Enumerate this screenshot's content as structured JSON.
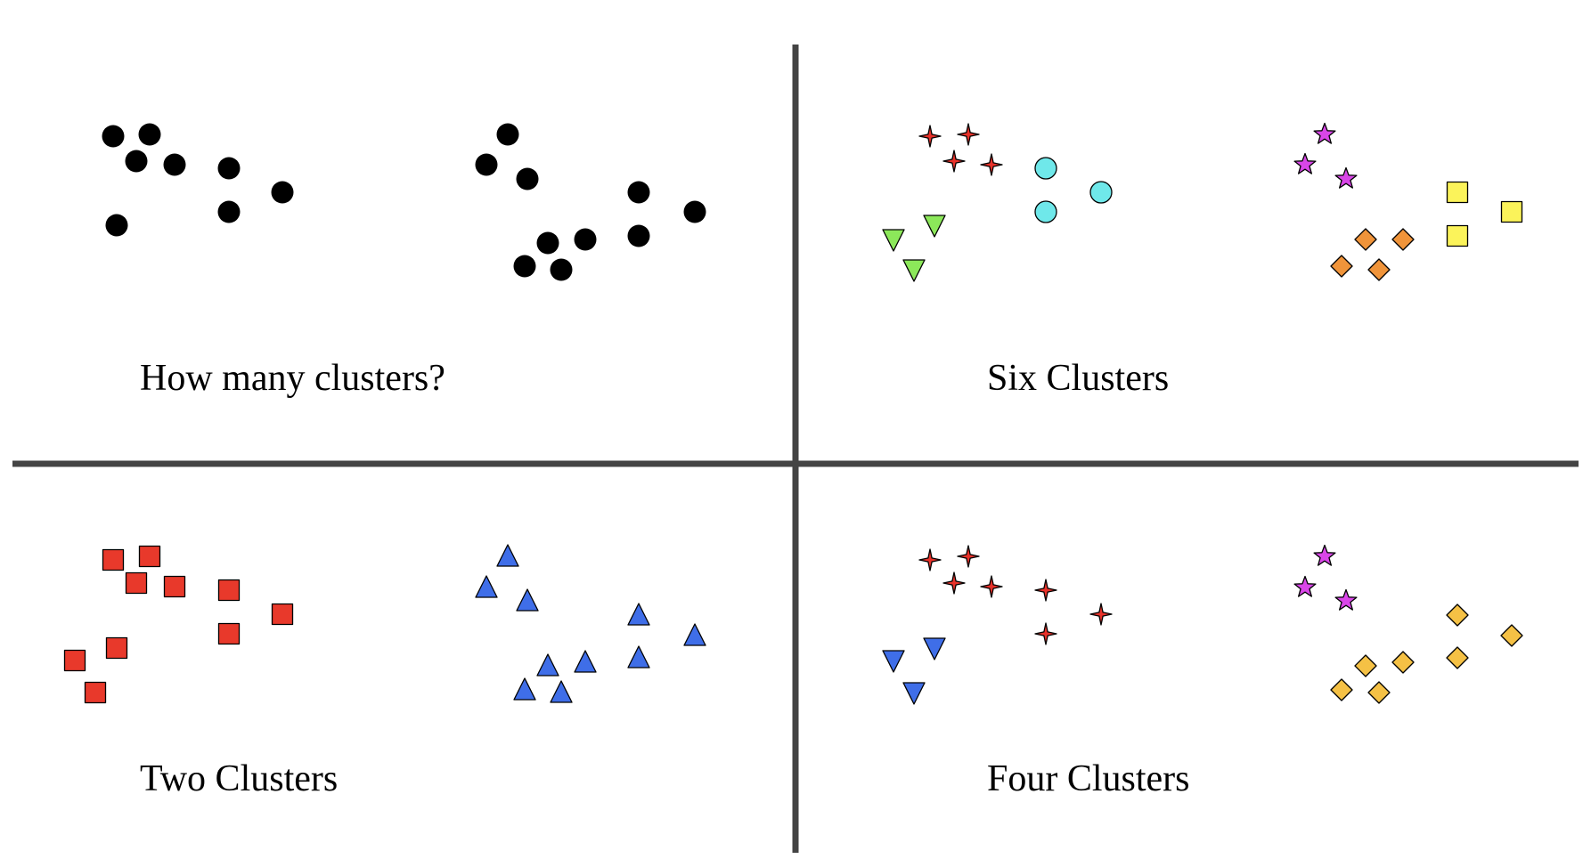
{
  "divider_color": "#444444",
  "panels": [
    {
      "id": "top-left",
      "caption": "How many clusters?",
      "clusters": [
        {
          "marker": "circle",
          "color": "#000000",
          "count": 8
        },
        {
          "marker": "circle",
          "color": "#000000",
          "count": 10
        }
      ]
    },
    {
      "id": "top-right",
      "caption": "Six Clusters",
      "clusters": [
        {
          "marker": "four-point-star",
          "color": "#e8322a",
          "count": 4
        },
        {
          "marker": "circle",
          "color": "#6fe8ea",
          "count": 3
        },
        {
          "marker": "triangle-down",
          "color": "#8ce85a",
          "count": 3
        },
        {
          "marker": "star",
          "color": "#d946e8",
          "count": 3
        },
        {
          "marker": "square",
          "color": "#fbf35a",
          "count": 3
        },
        {
          "marker": "diamond",
          "color": "#f0943a",
          "count": 4
        }
      ]
    },
    {
      "id": "bottom-left",
      "caption": "Two Clusters",
      "clusters": [
        {
          "marker": "square",
          "color": "#e8392b",
          "count": 10
        },
        {
          "marker": "triangle-up",
          "color": "#3f6ee8",
          "count": 10
        }
      ]
    },
    {
      "id": "bottom-right",
      "caption": "Four Clusters",
      "clusters": [
        {
          "marker": "four-point-star",
          "color": "#e8322a",
          "count": 7
        },
        {
          "marker": "triangle-down",
          "color": "#3f6ee8",
          "count": 3
        },
        {
          "marker": "star",
          "color": "#d946e8",
          "count": 3
        },
        {
          "marker": "diamond",
          "color": "#f5c145",
          "count": 7
        }
      ]
    }
  ]
}
